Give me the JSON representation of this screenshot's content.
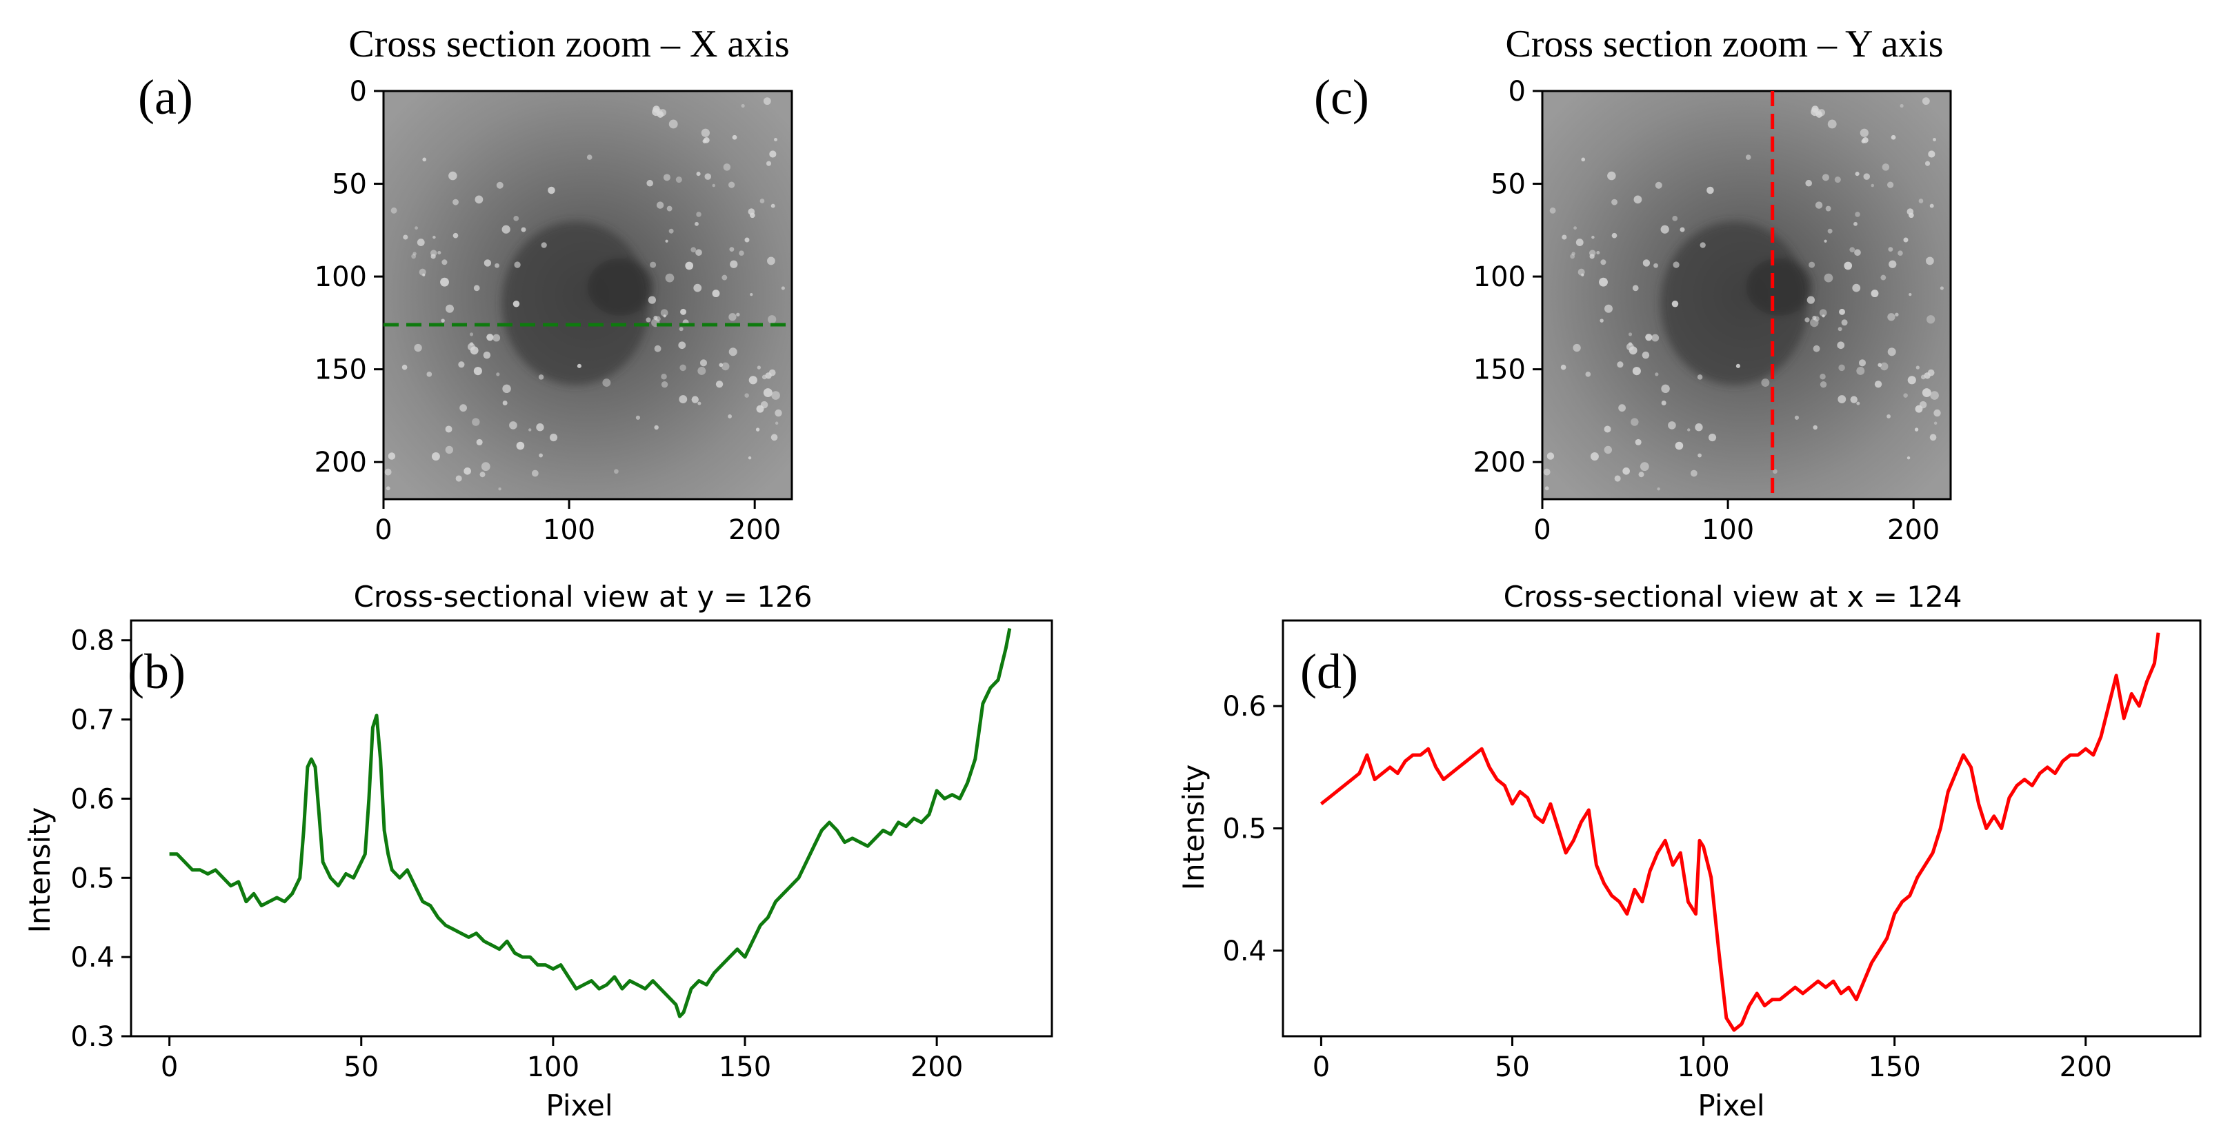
{
  "colors": {
    "green": "#0e7a0e",
    "red": "#ff0000",
    "axis": "#000000"
  },
  "panel_a": {
    "letter": "(a)",
    "title": "Cross section zoom – X axis",
    "xticks": [
      "0",
      "100",
      "200"
    ],
    "yticks": [
      "0",
      "50",
      "100",
      "150",
      "200"
    ],
    "xlim": [
      0,
      220
    ],
    "ylim": [
      220,
      0
    ],
    "line": {
      "orientation": "horizontal",
      "value": 126,
      "color": "#0e7a0e"
    }
  },
  "panel_c": {
    "letter": "(c)",
    "title": "Cross section zoom – Y axis",
    "xticks": [
      "0",
      "100",
      "200"
    ],
    "yticks": [
      "0",
      "50",
      "100",
      "150",
      "200"
    ],
    "xlim": [
      0,
      220
    ],
    "ylim": [
      220,
      0
    ],
    "line": {
      "orientation": "vertical",
      "value": 124,
      "color": "#ff0000"
    }
  },
  "chart_data": [
    {
      "type": "line",
      "panel": "(b)",
      "title": "Cross-sectional view at y = 126",
      "xlabel": "Pixel",
      "ylabel": "Intensity",
      "xlim": [
        -10,
        230
      ],
      "ylim": [
        0.3,
        0.825
      ],
      "xticks": [
        0,
        50,
        100,
        150,
        200
      ],
      "xtick_labels": [
        "0",
        "50",
        "100",
        "150",
        "200"
      ],
      "yticks": [
        0.3,
        0.4,
        0.5,
        0.6,
        0.7,
        0.8
      ],
      "ytick_labels": [
        "0.3",
        "0.4",
        "0.5",
        "0.6",
        "0.7",
        "0.8"
      ],
      "color": "#0e7a0e",
      "x": [
        0,
        2,
        4,
        6,
        8,
        10,
        12,
        14,
        16,
        18,
        20,
        22,
        24,
        26,
        28,
        30,
        32,
        34,
        35,
        36,
        37,
        38,
        39,
        40,
        42,
        44,
        46,
        48,
        50,
        51,
        52,
        53,
        54,
        55,
        56,
        57,
        58,
        60,
        62,
        64,
        66,
        68,
        70,
        72,
        74,
        76,
        78,
        80,
        82,
        84,
        86,
        88,
        90,
        92,
        94,
        96,
        98,
        100,
        102,
        104,
        106,
        108,
        110,
        112,
        114,
        116,
        118,
        120,
        122,
        124,
        126,
        128,
        130,
        132,
        133,
        134,
        136,
        138,
        140,
        142,
        144,
        146,
        148,
        150,
        152,
        154,
        156,
        158,
        160,
        162,
        164,
        166,
        168,
        170,
        172,
        174,
        176,
        178,
        180,
        182,
        184,
        186,
        188,
        190,
        192,
        194,
        196,
        198,
        200,
        202,
        204,
        206,
        208,
        210,
        212,
        214,
        216,
        218,
        219
      ],
      "values": [
        0.53,
        0.53,
        0.52,
        0.51,
        0.51,
        0.505,
        0.51,
        0.5,
        0.49,
        0.495,
        0.47,
        0.48,
        0.465,
        0.47,
        0.475,
        0.47,
        0.48,
        0.5,
        0.56,
        0.64,
        0.65,
        0.64,
        0.58,
        0.52,
        0.5,
        0.49,
        0.505,
        0.5,
        0.52,
        0.53,
        0.6,
        0.69,
        0.705,
        0.65,
        0.56,
        0.53,
        0.51,
        0.5,
        0.51,
        0.49,
        0.47,
        0.465,
        0.45,
        0.44,
        0.435,
        0.43,
        0.425,
        0.43,
        0.42,
        0.415,
        0.41,
        0.42,
        0.405,
        0.4,
        0.4,
        0.39,
        0.39,
        0.385,
        0.39,
        0.375,
        0.36,
        0.365,
        0.37,
        0.36,
        0.365,
        0.375,
        0.36,
        0.37,
        0.365,
        0.36,
        0.37,
        0.36,
        0.35,
        0.34,
        0.325,
        0.33,
        0.36,
        0.37,
        0.365,
        0.38,
        0.39,
        0.4,
        0.41,
        0.4,
        0.42,
        0.44,
        0.45,
        0.47,
        0.48,
        0.49,
        0.5,
        0.52,
        0.54,
        0.56,
        0.57,
        0.56,
        0.545,
        0.55,
        0.545,
        0.54,
        0.55,
        0.56,
        0.555,
        0.57,
        0.565,
        0.575,
        0.57,
        0.58,
        0.61,
        0.6,
        0.605,
        0.6,
        0.62,
        0.65,
        0.72,
        0.74,
        0.75,
        0.79,
        0.815
      ]
    },
    {
      "type": "line",
      "panel": "(d)",
      "title": "Cross-sectional view at x = 124",
      "xlabel": "Pixel",
      "ylabel": "Intensity",
      "xlim": [
        -10,
        230
      ],
      "ylim": [
        0.33,
        0.67
      ],
      "xticks": [
        0,
        50,
        100,
        150,
        200
      ],
      "xtick_labels": [
        "0",
        "50",
        "100",
        "150",
        "200"
      ],
      "yticks": [
        0.4,
        0.5,
        0.6
      ],
      "ytick_labels": [
        "0.4",
        "0.5",
        "0.6"
      ],
      "color": "#ff0000",
      "x": [
        0,
        2,
        4,
        6,
        8,
        10,
        12,
        14,
        16,
        18,
        20,
        22,
        24,
        26,
        28,
        30,
        32,
        34,
        36,
        38,
        40,
        42,
        44,
        46,
        48,
        50,
        52,
        54,
        56,
        58,
        60,
        62,
        64,
        66,
        68,
        70,
        72,
        74,
        76,
        78,
        80,
        82,
        84,
        86,
        88,
        90,
        92,
        94,
        96,
        98,
        99,
        100,
        102,
        104,
        106,
        108,
        110,
        112,
        114,
        116,
        118,
        120,
        122,
        124,
        126,
        128,
        130,
        132,
        134,
        136,
        138,
        140,
        142,
        144,
        146,
        148,
        150,
        152,
        154,
        156,
        158,
        160,
        162,
        164,
        166,
        168,
        170,
        172,
        174,
        176,
        178,
        180,
        182,
        184,
        186,
        188,
        190,
        192,
        194,
        196,
        198,
        200,
        202,
        204,
        206,
        208,
        210,
        212,
        214,
        216,
        218,
        219
      ],
      "values": [
        0.52,
        0.525,
        0.53,
        0.535,
        0.54,
        0.545,
        0.56,
        0.54,
        0.545,
        0.55,
        0.545,
        0.555,
        0.56,
        0.56,
        0.565,
        0.55,
        0.54,
        0.545,
        0.55,
        0.555,
        0.56,
        0.565,
        0.55,
        0.54,
        0.535,
        0.52,
        0.53,
        0.525,
        0.51,
        0.505,
        0.52,
        0.5,
        0.48,
        0.49,
        0.505,
        0.515,
        0.47,
        0.455,
        0.445,
        0.44,
        0.43,
        0.45,
        0.44,
        0.465,
        0.48,
        0.49,
        0.47,
        0.48,
        0.44,
        0.43,
        0.49,
        0.485,
        0.46,
        0.4,
        0.345,
        0.335,
        0.34,
        0.355,
        0.365,
        0.355,
        0.36,
        0.36,
        0.365,
        0.37,
        0.365,
        0.37,
        0.375,
        0.37,
        0.375,
        0.365,
        0.37,
        0.36,
        0.375,
        0.39,
        0.4,
        0.41,
        0.43,
        0.44,
        0.445,
        0.46,
        0.47,
        0.48,
        0.5,
        0.53,
        0.545,
        0.56,
        0.55,
        0.52,
        0.5,
        0.51,
        0.5,
        0.525,
        0.535,
        0.54,
        0.535,
        0.545,
        0.55,
        0.545,
        0.555,
        0.56,
        0.56,
        0.565,
        0.56,
        0.575,
        0.6,
        0.625,
        0.59,
        0.61,
        0.6,
        0.62,
        0.635,
        0.66
      ]
    }
  ]
}
